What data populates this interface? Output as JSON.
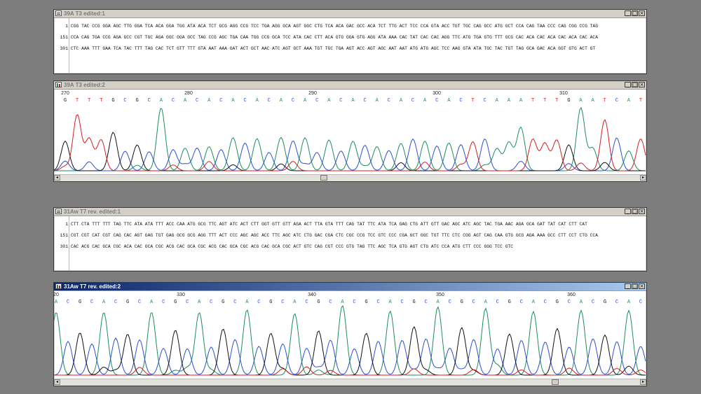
{
  "windows": [
    {
      "kind": "sequence",
      "title": "39A T3 edited:1",
      "rows": [
        {
          "num": "1",
          "text": "CGG TAC CCG GGA AGC TTG GGA TCA ACA GGA TGG ATA ACA TCT GCG AGG CCG TCC TGA AGG GCA AGT GGC CTG TCA ACA GAC GCC ACA TCT TTG ACT TCC CCA GTA ACC TGT TGC CAG GCC ATG GCT CCA CAG TAA CCC CAG CGG CCG TAG"
        },
        {
          "num": "151",
          "text": "CCA CAG TGA CCG AGA GCC CGT TGC AGA GGC GGA GCC TAG CCG AGC TGA CAA TGG CCG GCA TCC ATA CAC CTT ACA GTG GGA GTG AGG ATA AAA CAC TAT CAC CAC AGG TTC ATG TGA GTG TTT GCG CAC ACA CAC ACA CAC ACA CAC ACA"
        },
        {
          "num": "301",
          "text": "CTC AAA TTT GAA TCA TAC TTT TAG CAC TCT GTT TTT GTA AAT AAA GAT ACT GCT AAC ATC AGT GCT AAA TGT TGC TGA AGT ACC AGT AGC AAT AAT ATG ATG AGC TCC AAG GTA ATA TGC TAC TGT TAG GCA GAC ACA GGT GTG ACT GT"
        }
      ]
    },
    {
      "kind": "trace",
      "title": "39A T3 edited:2",
      "ticks": [
        "270",
        "280",
        "290",
        "300",
        "310"
      ],
      "bases": "GTTTGCGCACACACACACACACACACACACACACTCAAATTTGAATCAT",
      "base_colors": {
        "A": "#1a8f5a",
        "C": "#2b4fd6",
        "G": "#111111",
        "T": "#d42020"
      }
    },
    {
      "kind": "sequence",
      "title": "31Aw T7 rev. edited:1",
      "rows": [
        {
          "num": "1",
          "text": "CTT CTA TTT TTT TAG TTC ATA ATA TTT ACC CAA ATG GCG TTC AGT ATC ACT CTT GGT GTT GTT AGA ACT TTA GTA TTT CAG TAT TTC ATA TCA GAG CTG ATT GTT GAC AGC ATC AGC TAC TGA AAC AGA GCA GAT TAT CAT CTT CAT"
        },
        {
          "num": "151",
          "text": "CGT CGT CAT CGT CAG CAC AGT GAG TGT GAG GCG GCG AGG TTT ACT CCC AGC AGC ACC TTC AGC ATC CTG GAC CGA CTC CGC CCG TCC GTC CCC CGA GCT GGC TGT TTC CTC CGG AGT CAG CAA GTG GCG AGA AAA GCC CTT CCT CTG CCA"
        },
        {
          "num": "301",
          "text": "CAC ACG CAC GCA CGC ACA CAC GCA CGC ACG CAC GCA CGC ACG CAC GCA CGC ACG CAC GCA CGC ACT GTC CAG CGT CCC GTG TAG TTC AGC TCA GTG AGT CTG ATC CCA ATG CTT CCC GGG TCC GTC"
        }
      ]
    },
    {
      "kind": "trace",
      "title": "31Aw T7 rev. edited:2",
      "ticks": [
        "20",
        "330",
        "340",
        "350",
        "360"
      ],
      "bases": "ACGCACGCACGCACGCACGCACGCACGCACGCACGCACGCACGCACGCAC",
      "base_colors": {
        "A": "#1a8f5a",
        "C": "#2b4fd6",
        "G": "#111111",
        "T": "#d42020"
      }
    }
  ],
  "controls": {
    "minimize": "_",
    "maximize": "□",
    "close": "×",
    "scroll_left": "◂",
    "scroll_right": "▸"
  },
  "icons": {
    "sequence_window": "sequence-doc-icon",
    "trace_window": "chromatogram-icon"
  }
}
